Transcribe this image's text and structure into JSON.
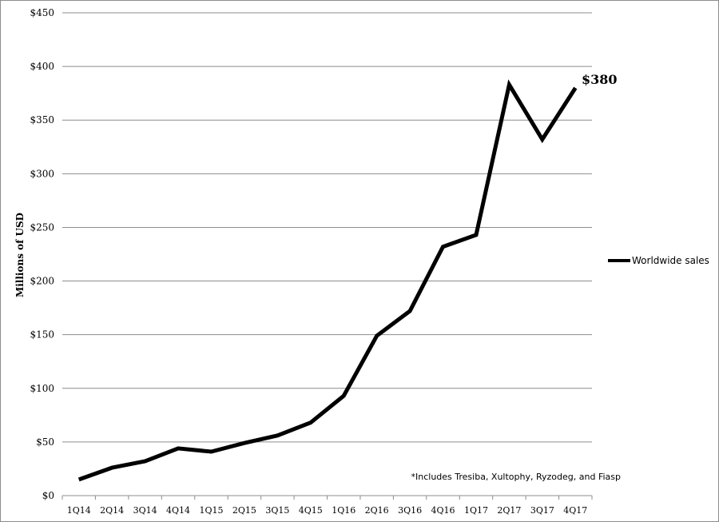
{
  "chart_data": {
    "type": "line",
    "ylabel": "Millions of USD",
    "ylim": [
      0,
      450
    ],
    "grid": true,
    "legend_position": "right",
    "categories": [
      "1Q14",
      "2Q14",
      "3Q14",
      "4Q14",
      "1Q15",
      "2Q15",
      "3Q15",
      "4Q15",
      "1Q16",
      "2Q16",
      "3Q16",
      "4Q16",
      "1Q17",
      "2Q17",
      "3Q17",
      "4Q17"
    ],
    "y_ticks": [
      0,
      50,
      100,
      150,
      200,
      250,
      300,
      350,
      400,
      450
    ],
    "y_tick_labels": [
      "$0",
      "$50",
      "$100",
      "$150",
      "$200",
      "$250",
      "$300",
      "$350",
      "$400",
      "$450"
    ],
    "series": [
      {
        "name": "Worldwide sales",
        "color": "#000000",
        "values": [
          15,
          26,
          32,
          44,
          41,
          49,
          56,
          68,
          93,
          149,
          172,
          232,
          243,
          383,
          332,
          380
        ]
      }
    ],
    "end_label": "$380",
    "footnote": "*Includes Tresiba, Xultophy, Ryzodeg, and Fiasp"
  }
}
